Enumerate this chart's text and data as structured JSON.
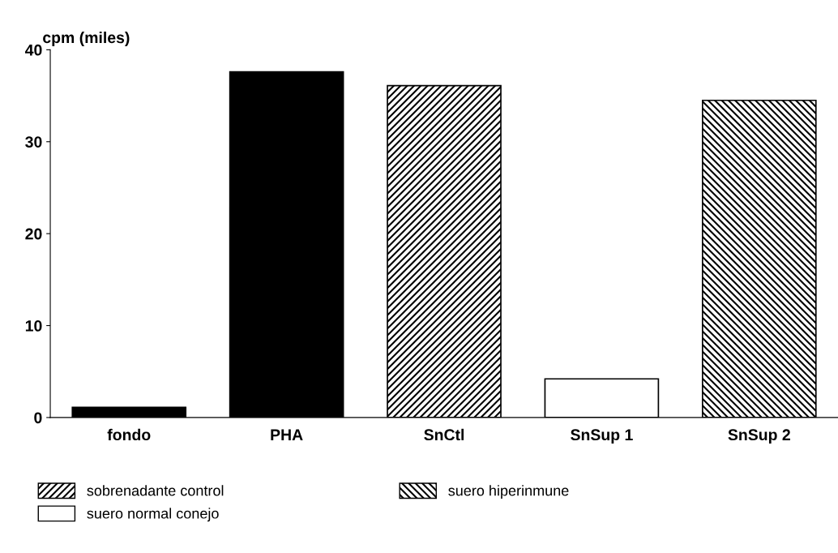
{
  "chart_data": {
    "type": "bar",
    "ylabel": "cpm (miles)",
    "categories": [
      "fondo",
      "PHA",
      "SnCtl",
      "SnSup 1",
      "SnSup 2"
    ],
    "series": [
      {
        "color": "#000000",
        "values": [
          1.1,
          37.6,
          null,
          null,
          null
        ]
      },
      {
        "name": "sobrenadante control",
        "color": "#000000",
        "values": [
          null,
          null,
          36.1,
          null,
          null
        ]
      },
      {
        "name": "suero normal conejo",
        "color": "#ffffff",
        "values": [
          null,
          null,
          null,
          4.2,
          null
        ]
      },
      {
        "name": "suero hiperinmune",
        "color": "#000000",
        "values": [
          null,
          null,
          null,
          null,
          34.5
        ]
      }
    ],
    "ylim": [
      0,
      40
    ],
    "yticks": [
      0,
      10,
      20,
      30,
      40
    ],
    "grid": false,
    "legend": "bottom"
  }
}
